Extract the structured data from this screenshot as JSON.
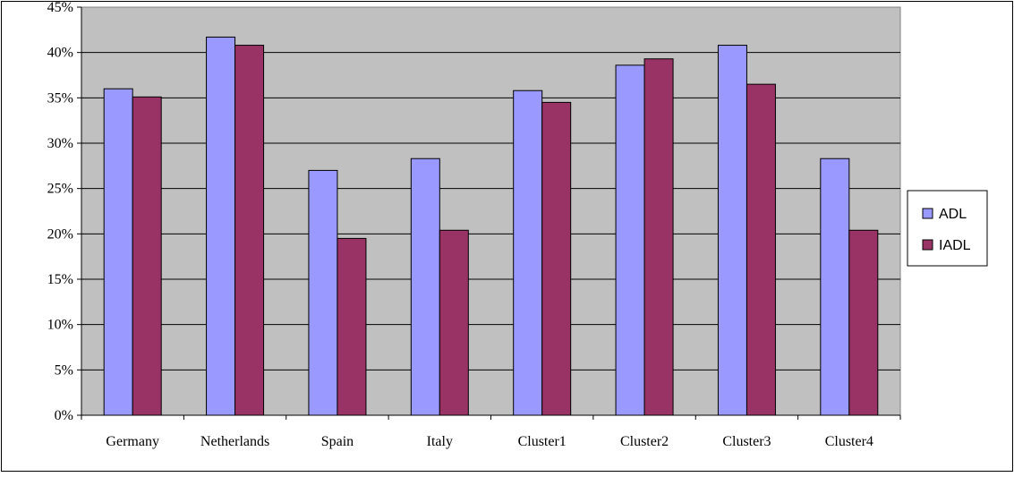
{
  "chart_data": {
    "type": "bar",
    "categories": [
      "Germany",
      "Netherlands",
      "Spain",
      "Italy",
      "Cluster1",
      "Cluster2",
      "Cluster3",
      "Cluster4"
    ],
    "series": [
      {
        "name": "ADL",
        "color": "#9999ff",
        "values": [
          36.0,
          41.7,
          27.0,
          28.3,
          35.8,
          38.6,
          40.8,
          28.3
        ]
      },
      {
        "name": "IADL",
        "color": "#993366",
        "values": [
          35.1,
          40.8,
          19.5,
          20.4,
          34.5,
          39.3,
          36.5,
          20.4
        ]
      }
    ],
    "ylim": [
      0,
      45
    ],
    "yticks": [
      "0%",
      "5%",
      "10%",
      "15%",
      "20%",
      "25%",
      "30%",
      "35%",
      "40%",
      "45%"
    ],
    "grid": true,
    "plot_background": "#c0c0c0",
    "legend_position": "right"
  }
}
